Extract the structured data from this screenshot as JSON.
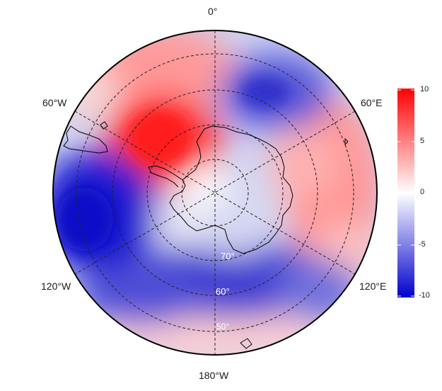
{
  "map": {
    "projection": "south-polar-stereographic",
    "lon_labels": {
      "top": "0°",
      "upper_left": "60°W",
      "upper_right": "60°E",
      "lower_left": "120°W",
      "lower_right": "120°E",
      "bottom": "180°W"
    },
    "lat_labels": [
      "70°",
      "60°",
      "50°"
    ],
    "graticule_latitudes": [
      -80,
      -70,
      -60,
      -50,
      -40
    ],
    "field_description_colors": {
      "high": "#ff0000",
      "mid": "#ffffff",
      "low": "#0000cc"
    }
  },
  "colorbar": {
    "ticks": [
      "10",
      "5",
      "0",
      "-5",
      "-10"
    ],
    "range": [
      -10,
      10
    ],
    "top_color": "#ff0000",
    "mid_color": "#ffffff",
    "bottom_color": "#0000cc"
  }
}
